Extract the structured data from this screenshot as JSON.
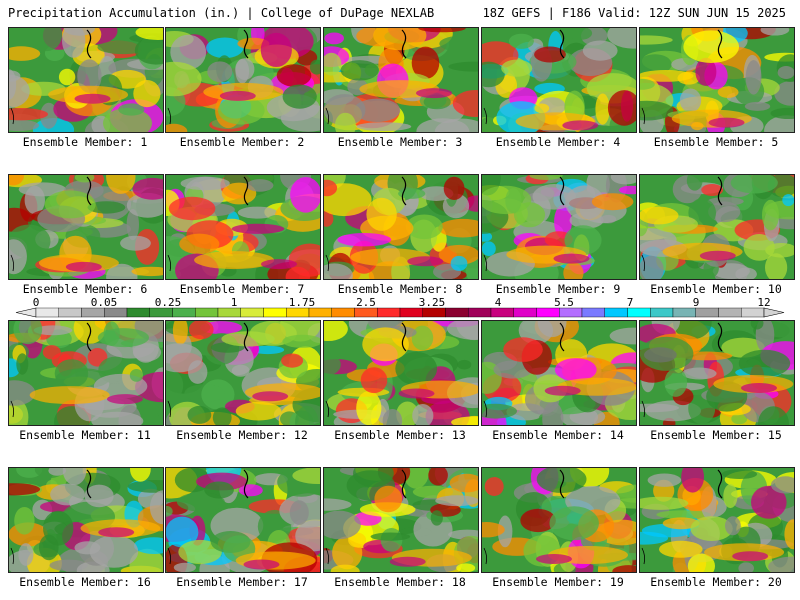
{
  "header": {
    "title_left": "Precipitation Accumulation (in.) | College of DuPage NEXLAB",
    "title_right": "18Z GEFS | F186 Valid: 12Z SUN JUN 15 2025"
  },
  "colorbar": {
    "labels": [
      "0",
      "0.05",
      "0.25",
      "1",
      "1.75",
      "2.5",
      "3.25",
      "4",
      "5.5",
      "7",
      "9",
      "12"
    ],
    "colors": [
      "#e8e8e8",
      "#c8c8c8",
      "#a6a6a6",
      "#8a8a8a",
      "#2e8b2e",
      "#3c9a3c",
      "#4cb04c",
      "#74c43a",
      "#a8d83a",
      "#d8ec3a",
      "#ffff00",
      "#ffd700",
      "#ffb000",
      "#ff8c00",
      "#ff5a1e",
      "#ff2a2a",
      "#e0001e",
      "#b40000",
      "#8b0030",
      "#a0005a",
      "#c8007e",
      "#e000c8",
      "#ff00ff",
      "#b46eff",
      "#7a7aff",
      "#00c8ff",
      "#00ffff",
      "#3cc8c8",
      "#78b4b4",
      "#a0a0a0",
      "#b4b4b4",
      "#d2d2d2"
    ]
  },
  "members": [
    {
      "label": "Ensemble Member: 1"
    },
    {
      "label": "Ensemble Member: 2"
    },
    {
      "label": "Ensemble Member: 3"
    },
    {
      "label": "Ensemble Member: 4"
    },
    {
      "label": "Ensemble Member: 5"
    },
    {
      "label": "Ensemble Member: 6"
    },
    {
      "label": "Ensemble Member: 7"
    },
    {
      "label": "Ensemble Member: 8"
    },
    {
      "label": "Ensemble Member: 9"
    },
    {
      "label": "Ensemble Member: 10"
    },
    {
      "label": "Ensemble Member: 11"
    },
    {
      "label": "Ensemble Member: 12"
    },
    {
      "label": "Ensemble Member: 13"
    },
    {
      "label": "Ensemble Member: 14"
    },
    {
      "label": "Ensemble Member: 15"
    },
    {
      "label": "Ensemble Member: 16"
    },
    {
      "label": "Ensemble Member: 17"
    },
    {
      "label": "Ensemble Member: 18"
    },
    {
      "label": "Ensemble Member: 19"
    },
    {
      "label": "Ensemble Member: 20"
    }
  ]
}
